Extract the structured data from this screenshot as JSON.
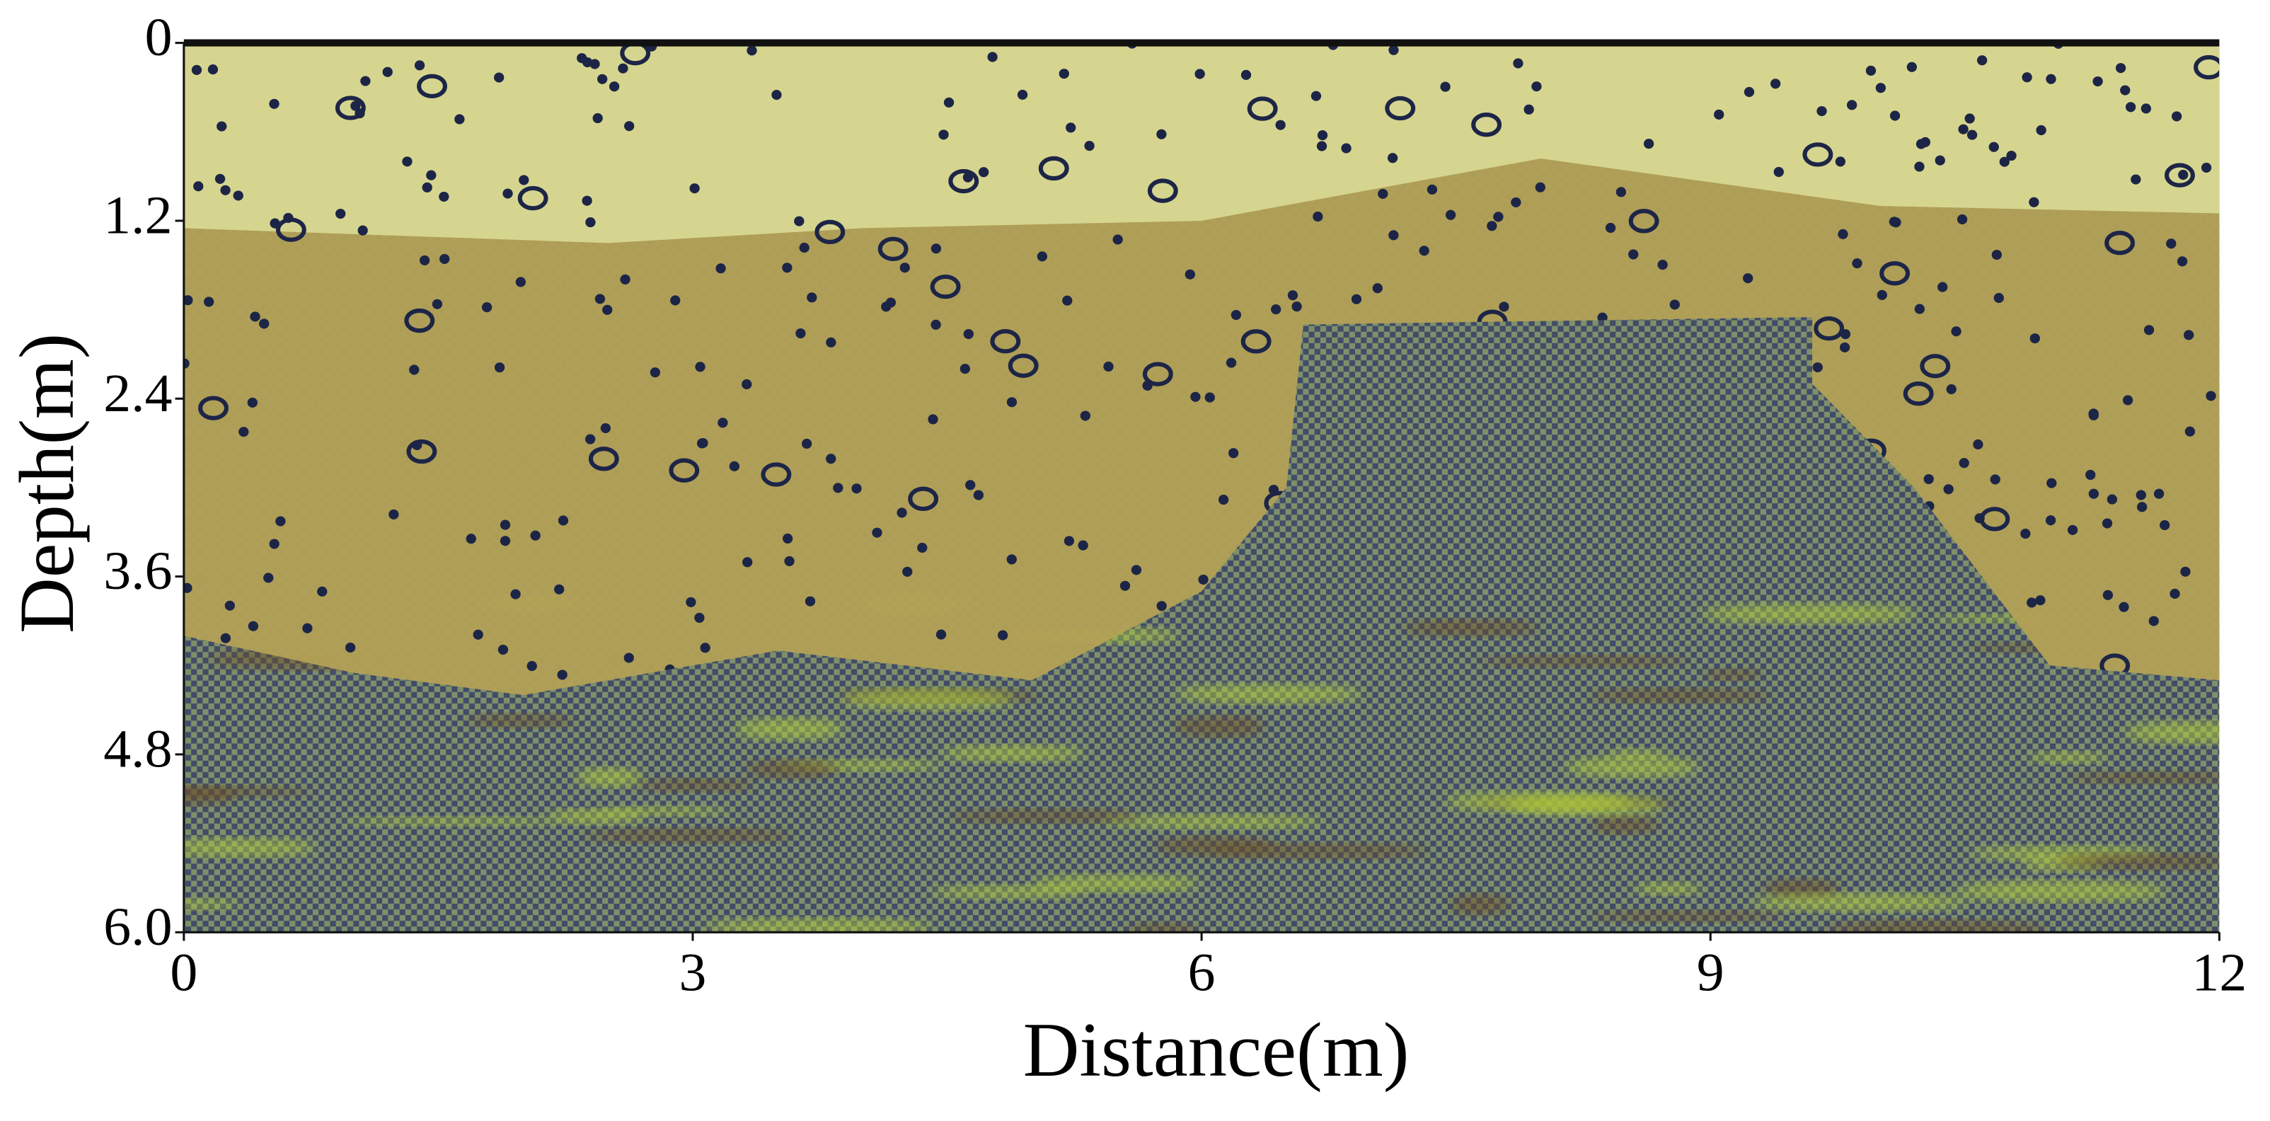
{
  "chart_data": {
    "type": "profile",
    "xlabel": "Distance(m)",
    "ylabel": "Depth(m)",
    "xlim": [
      0,
      12
    ],
    "xticks": [
      0,
      3,
      6,
      9,
      12
    ],
    "ylim": [
      6,
      0
    ],
    "yticks": [
      0,
      1.2,
      2.4,
      3.6,
      4.8,
      {
        "value": 6,
        "label": "6.0"
      }
    ]
  }
}
